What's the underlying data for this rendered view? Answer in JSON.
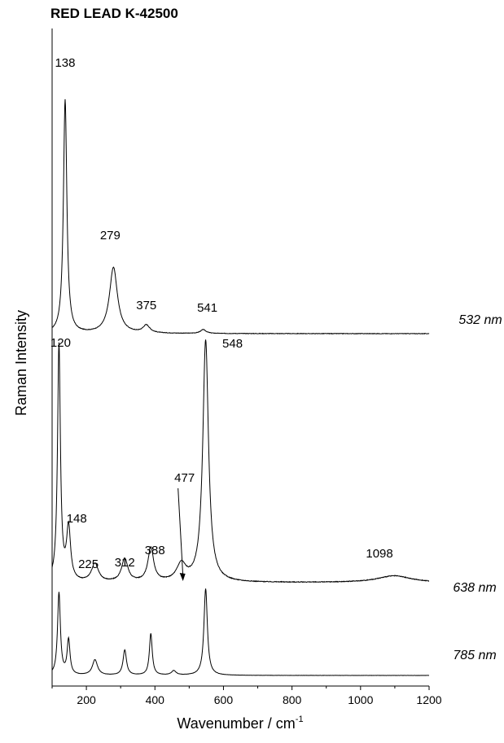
{
  "chart_data": {
    "type": "line",
    "title": "RED LEAD K-42500",
    "xlabel": "Wavenumber / cm",
    "xlabel_superscript": "-1",
    "ylabel": "Raman Intensity",
    "xlim": [
      100,
      1200
    ],
    "xticks": [
      200,
      400,
      600,
      800,
      1000,
      1200
    ],
    "y_ticks_shown": false,
    "grid": false,
    "series": [
      {
        "name": "532 nm",
        "baseline": 0.0,
        "noise": 0.002,
        "peaks": [
          {
            "x": 138,
            "height": 0.92,
            "width": 6
          },
          {
            "x": 279,
            "height": 0.26,
            "width": 14
          },
          {
            "x": 375,
            "height": 0.03,
            "width": 12
          },
          {
            "x": 541,
            "height": 0.015,
            "width": 10
          }
        ],
        "labels": [
          {
            "x": 138,
            "text": "138"
          },
          {
            "x": 279,
            "text": "279"
          },
          {
            "x": 375,
            "text": "375"
          },
          {
            "x": 541,
            "text": "541"
          }
        ]
      },
      {
        "name": "638 nm",
        "baseline": 0.0,
        "noise": 0.003,
        "peaks": [
          {
            "x": 120,
            "height": 0.98,
            "width": 5
          },
          {
            "x": 148,
            "height": 0.22,
            "width": 7
          },
          {
            "x": 225,
            "height": 0.075,
            "width": 12
          },
          {
            "x": 312,
            "height": 0.095,
            "width": 11
          },
          {
            "x": 388,
            "height": 0.14,
            "width": 10
          },
          {
            "x": 477,
            "height": 0.07,
            "width": 16
          },
          {
            "x": 548,
            "height": 1.0,
            "width": 10
          },
          {
            "x": 1098,
            "height": 0.028,
            "width": 60
          }
        ],
        "labels": [
          {
            "x": 120,
            "text": "120"
          },
          {
            "x": 148,
            "text": "148"
          },
          {
            "x": 225,
            "text": "225"
          },
          {
            "x": 312,
            "text": "312"
          },
          {
            "x": 388,
            "text": "388"
          },
          {
            "x": 477,
            "text": "477"
          },
          {
            "x": 548,
            "text": "548"
          },
          {
            "x": 1098,
            "text": "1098"
          }
        ]
      },
      {
        "name": "785 nm",
        "baseline": 0.0,
        "noise": 0.002,
        "peaks": [
          {
            "x": 120,
            "height": 0.75,
            "width": 5
          },
          {
            "x": 148,
            "height": 0.32,
            "width": 5
          },
          {
            "x": 225,
            "height": 0.14,
            "width": 9
          },
          {
            "x": 312,
            "height": 0.23,
            "width": 6
          },
          {
            "x": 388,
            "height": 0.38,
            "width": 5
          },
          {
            "x": 455,
            "height": 0.04,
            "width": 8
          },
          {
            "x": 548,
            "height": 0.79,
            "width": 6
          }
        ],
        "labels": []
      }
    ]
  }
}
